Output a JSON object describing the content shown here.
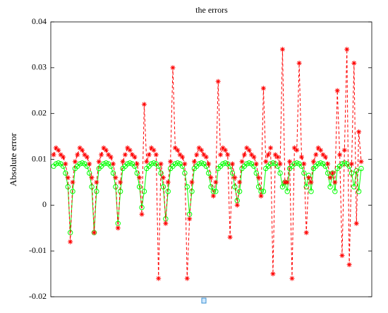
{
  "chart_data": {
    "type": "line",
    "title": "the errors",
    "y_label": "Absolute error",
    "ylim": [
      -0.02,
      0.04
    ],
    "yticks": [
      -0.02,
      -0.01,
      0,
      0.01,
      0.02,
      0.03,
      0.04
    ],
    "series": [
      {
        "color": "#00ff00",
        "marker": "o",
        "values": [
          0.0085,
          0.009,
          0.0092,
          0.009,
          0.0085,
          0.007,
          0.004,
          -0.006,
          0.003,
          0.008,
          0.0085,
          0.009,
          0.0092,
          0.009,
          0.0085,
          0.007,
          0.004,
          -0.006,
          0.003,
          0.008,
          0.0085,
          0.009,
          0.0092,
          0.009,
          0.0085,
          0.007,
          0.004,
          -0.004,
          0.003,
          0.008,
          0.0085,
          0.009,
          0.0092,
          0.009,
          0.0085,
          0.007,
          0.004,
          -0.0005,
          0.003,
          0.008,
          0.0085,
          0.009,
          0.0092,
          0.009,
          0.0085,
          0.007,
          0.004,
          -0.003,
          0.003,
          0.008,
          0.0085,
          0.009,
          0.0092,
          0.009,
          0.0085,
          0.007,
          0.004,
          -0.002,
          0.003,
          0.008,
          0.0085,
          0.009,
          0.0092,
          0.009,
          0.0085,
          0.007,
          0.004,
          0.003,
          0.003,
          0.008,
          0.0085,
          0.009,
          0.0092,
          0.009,
          0.0085,
          0.007,
          0.004,
          0.001,
          0.003,
          0.008,
          0.0085,
          0.009,
          0.0092,
          0.009,
          0.0085,
          0.007,
          0.004,
          0.003,
          0.003,
          0.008,
          0.0085,
          0.009,
          0.0092,
          0.009,
          0.0085,
          0.007,
          0.004,
          0.005,
          0.003,
          0.008,
          0.0085,
          0.009,
          0.0092,
          0.009,
          0.0085,
          0.007,
          0.004,
          0.0065,
          0.003,
          0.008,
          0.0085,
          0.009,
          0.0092,
          0.009,
          0.0085,
          0.007,
          0.004,
          0.007,
          0.003,
          0.008,
          0.0085,
          0.009,
          0.0092,
          0.009,
          0.0085,
          0.007,
          0.004,
          0.0075,
          0.003,
          0.008
        ]
      },
      {
        "color": "#ff0000",
        "marker": "*",
        "values": [
          0.011,
          0.0125,
          0.012,
          0.011,
          0.0105,
          0.009,
          0.006,
          -0.008,
          0.005,
          0.0095,
          0.011,
          0.0125,
          0.012,
          0.011,
          0.0105,
          0.009,
          0.006,
          -0.006,
          0.005,
          0.0095,
          0.011,
          0.0125,
          0.012,
          0.011,
          0.0105,
          0.009,
          0.006,
          -0.005,
          0.005,
          0.0095,
          0.011,
          0.0125,
          0.012,
          0.011,
          0.0105,
          0.009,
          0.006,
          -0.002,
          0.022,
          0.0095,
          0.011,
          0.0125,
          0.012,
          0.011,
          -0.016,
          0.009,
          0.006,
          -0.004,
          0.005,
          0.0095,
          0.03,
          0.0125,
          0.012,
          0.011,
          0.0105,
          0.009,
          -0.016,
          -0.003,
          0.005,
          0.0095,
          0.011,
          0.0125,
          0.012,
          0.011,
          0.0105,
          0.009,
          0.006,
          0.002,
          0.005,
          0.027,
          0.011,
          0.0125,
          0.012,
          0.011,
          -0.007,
          0.009,
          0.006,
          0.0,
          0.005,
          0.0095,
          0.011,
          0.0125,
          0.012,
          0.011,
          0.0105,
          0.009,
          0.006,
          0.002,
          0.0255,
          0.0095,
          0.011,
          0.0125,
          -0.015,
          0.011,
          0.0105,
          0.009,
          0.034,
          0.005,
          0.005,
          0.0095,
          -0.016,
          0.0125,
          0.012,
          0.031,
          0.0105,
          0.009,
          -0.006,
          0.006,
          0.005,
          0.0095,
          0.011,
          0.0125,
          0.012,
          0.011,
          0.0105,
          0.009,
          0.006,
          0.007,
          0.005,
          0.025,
          0.011,
          -0.011,
          0.012,
          0.034,
          -0.013,
          0.009,
          0.031,
          -0.004,
          0.016,
          0.0095
        ]
      }
    ]
  }
}
